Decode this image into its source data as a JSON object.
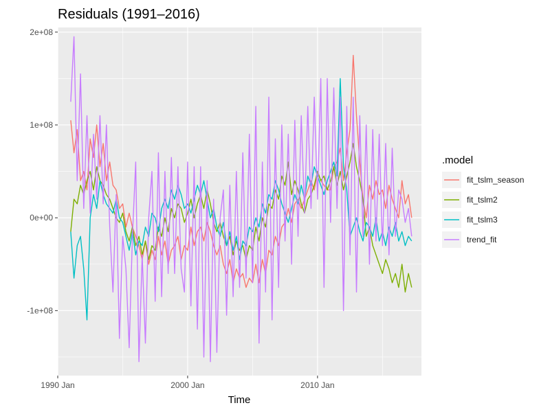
{
  "chart_data": {
    "type": "line",
    "title": "Residuals (1991–2016)",
    "xlabel": "Time",
    "ylabel": "",
    "x_range": [
      1990.0,
      2018.0
    ],
    "y_range": [
      -170000000,
      205000000
    ],
    "x_ticks": [
      {
        "value": 1990,
        "label": "1990 Jan"
      },
      {
        "value": 2000,
        "label": "2000 Jan"
      },
      {
        "value": 2010,
        "label": "2010 Jan"
      }
    ],
    "y_ticks": [
      {
        "value": -100000000,
        "label": "-1e+08"
      },
      {
        "value": 0,
        "label": "0e+00"
      },
      {
        "value": 100000000,
        "label": "1e+08"
      },
      {
        "value": 200000000,
        "label": "2e+08"
      }
    ],
    "grid": true,
    "legend": {
      "title": ".model",
      "position": "right"
    },
    "panel_background": "#ebebeb",
    "x_start": 1991.0,
    "x_step": 0.25,
    "series": [
      {
        "name": "fit_tslm_season",
        "color": "#f8766d",
        "values": [
          105000000,
          70000000,
          95000000,
          40000000,
          50000000,
          30000000,
          85000000,
          65000000,
          100000000,
          55000000,
          80000000,
          40000000,
          60000000,
          35000000,
          30000000,
          10000000,
          15000000,
          -10000000,
          5000000,
          -10000000,
          -20000000,
          -30000000,
          -45000000,
          -25000000,
          -50000000,
          -35000000,
          -45000000,
          -20000000,
          -40000000,
          -25000000,
          -50000000,
          -35000000,
          -30000000,
          -20000000,
          -45000000,
          -30000000,
          -35000000,
          -10000000,
          -30000000,
          -15000000,
          -10000000,
          -25000000,
          -5000000,
          -15000000,
          -30000000,
          -40000000,
          -30000000,
          -50000000,
          -60000000,
          -45000000,
          -70000000,
          -55000000,
          -65000000,
          -60000000,
          -75000000,
          -65000000,
          -70000000,
          -50000000,
          -70000000,
          -45000000,
          -60000000,
          -35000000,
          -40000000,
          -20000000,
          -30000000,
          -10000000,
          -5000000,
          10000000,
          -5000000,
          15000000,
          20000000,
          10000000,
          20000000,
          30000000,
          40000000,
          30000000,
          50000000,
          40000000,
          35000000,
          30000000,
          30000000,
          55000000,
          60000000,
          75000000,
          40000000,
          70000000,
          95000000,
          175000000,
          110000000,
          60000000,
          20000000,
          0,
          35000000,
          20000000,
          40000000,
          25000000,
          30000000,
          10000000,
          35000000,
          20000000,
          10000000,
          0,
          40000000,
          15000000,
          25000000,
          0
        ]
      },
      {
        "name": "fit_tslm2",
        "color": "#7cae00",
        "values": [
          -15000000,
          20000000,
          15000000,
          35000000,
          25000000,
          40000000,
          50000000,
          30000000,
          55000000,
          40000000,
          35000000,
          25000000,
          20000000,
          10000000,
          0,
          -5000000,
          5000000,
          -15000000,
          -25000000,
          -10000000,
          -30000000,
          -20000000,
          -40000000,
          -25000000,
          -45000000,
          -30000000,
          -35000000,
          -10000000,
          -20000000,
          0,
          -15000000,
          10000000,
          0,
          15000000,
          10000000,
          -5000000,
          5000000,
          20000000,
          0,
          15000000,
          25000000,
          10000000,
          30000000,
          15000000,
          -5000000,
          -15000000,
          -5000000,
          -20000000,
          -30000000,
          -20000000,
          -40000000,
          -25000000,
          -35000000,
          -30000000,
          -45000000,
          -30000000,
          -35000000,
          -10000000,
          -25000000,
          0,
          -10000000,
          15000000,
          10000000,
          30000000,
          20000000,
          45000000,
          35000000,
          60000000,
          25000000,
          40000000,
          30000000,
          15000000,
          5000000,
          20000000,
          25000000,
          35000000,
          50000000,
          40000000,
          45000000,
          30000000,
          40000000,
          55000000,
          35000000,
          50000000,
          30000000,
          45000000,
          60000000,
          80000000,
          55000000,
          40000000,
          20000000,
          -20000000,
          -10000000,
          -30000000,
          -40000000,
          -50000000,
          -60000000,
          -45000000,
          -55000000,
          -70000000,
          -60000000,
          -75000000,
          -50000000,
          -80000000,
          -60000000,
          -75000000
        ]
      },
      {
        "name": "fit_tslm3",
        "color": "#00bfc4",
        "values": [
          -15000000,
          -65000000,
          -30000000,
          -20000000,
          -55000000,
          -110000000,
          0,
          25000000,
          10000000,
          40000000,
          25000000,
          15000000,
          10000000,
          5000000,
          20000000,
          0,
          -5000000,
          -20000000,
          -35000000,
          -15000000,
          -40000000,
          -25000000,
          -30000000,
          -10000000,
          -20000000,
          5000000,
          0,
          -15000000,
          10000000,
          20000000,
          10000000,
          30000000,
          20000000,
          35000000,
          25000000,
          10000000,
          15000000,
          5000000,
          20000000,
          35000000,
          25000000,
          40000000,
          20000000,
          0,
          10000000,
          -10000000,
          -20000000,
          -5000000,
          -30000000,
          -15000000,
          -35000000,
          -20000000,
          -45000000,
          -25000000,
          -30000000,
          -10000000,
          -15000000,
          0,
          -10000000,
          15000000,
          5000000,
          25000000,
          20000000,
          40000000,
          30000000,
          15000000,
          5000000,
          -5000000,
          10000000,
          25000000,
          15000000,
          35000000,
          20000000,
          45000000,
          35000000,
          55000000,
          45000000,
          35000000,
          25000000,
          40000000,
          50000000,
          60000000,
          45000000,
          150000000,
          55000000,
          30000000,
          -20000000,
          -10000000,
          0,
          -15000000,
          -25000000,
          -5000000,
          -10000000,
          -20000000,
          0,
          -25000000,
          -15000000,
          -30000000,
          -10000000,
          -20000000,
          -5000000,
          -25000000,
          -15000000,
          -30000000,
          -20000000,
          -25000000
        ]
      },
      {
        "name": "trend_fit",
        "color": "#c77cff",
        "values": [
          125000000,
          195000000,
          40000000,
          155000000,
          10000000,
          110000000,
          5000000,
          90000000,
          20000000,
          110000000,
          15000000,
          100000000,
          -10000000,
          -80000000,
          25000000,
          -130000000,
          -20000000,
          -55000000,
          -140000000,
          -20000000,
          60000000,
          -155000000,
          -40000000,
          -135000000,
          0,
          50000000,
          -90000000,
          70000000,
          -85000000,
          50000000,
          -60000000,
          65000000,
          -60000000,
          55000000,
          -55000000,
          -80000000,
          60000000,
          -95000000,
          55000000,
          -120000000,
          55000000,
          -150000000,
          40000000,
          -155000000,
          20000000,
          -145000000,
          0,
          30000000,
          -105000000,
          35000000,
          -85000000,
          50000000,
          -75000000,
          70000000,
          -65000000,
          90000000,
          -70000000,
          120000000,
          -135000000,
          60000000,
          -80000000,
          130000000,
          -110000000,
          85000000,
          -75000000,
          100000000,
          -25000000,
          90000000,
          -50000000,
          105000000,
          -20000000,
          110000000,
          5000000,
          120000000,
          10000000,
          130000000,
          20000000,
          150000000,
          -75000000,
          150000000,
          -5000000,
          140000000,
          10000000,
          130000000,
          -100000000,
          120000000,
          -40000000,
          130000000,
          -80000000,
          110000000,
          -20000000,
          100000000,
          -50000000,
          95000000,
          -25000000,
          90000000,
          -30000000,
          80000000,
          -40000000,
          75000000,
          -20000000,
          30000000,
          20000000,
          -5000000,
          10000000,
          -20000000
        ]
      }
    ]
  }
}
